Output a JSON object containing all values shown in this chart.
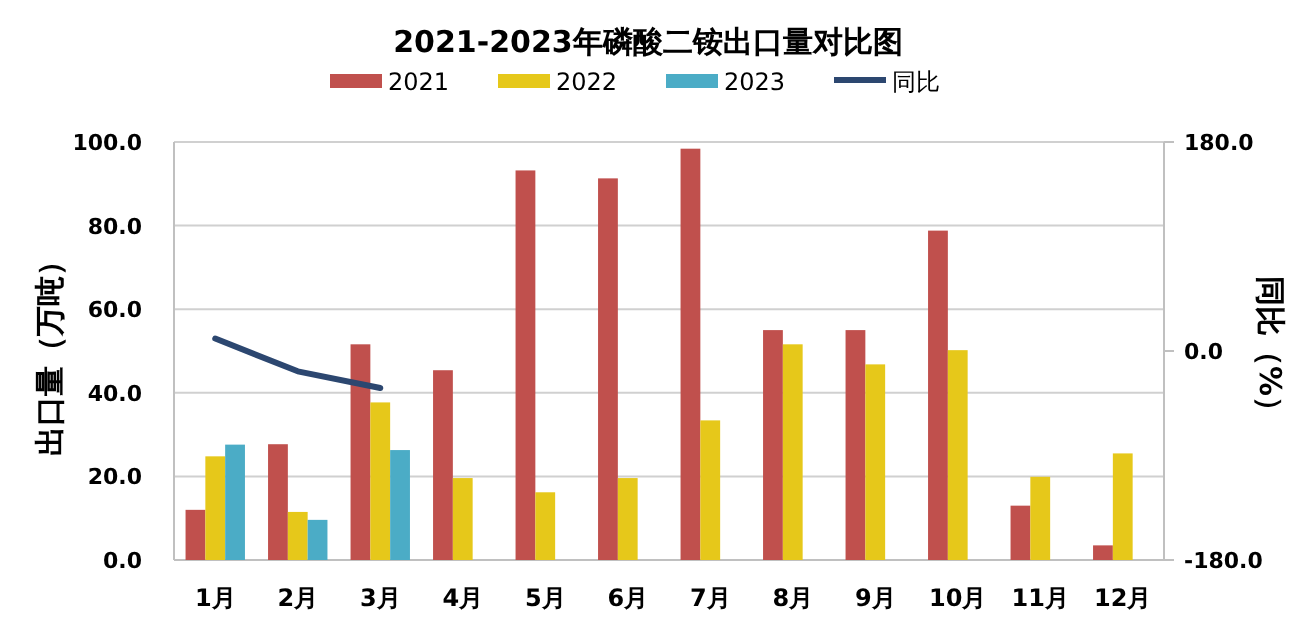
{
  "chart_data": {
    "type": "bar",
    "title": "2021-2023年磷酸二铵出口量对比图",
    "ylabel": "出口量（万吨）",
    "y2label": "同比（%）",
    "categories": [
      "1月",
      "2月",
      "3月",
      "4月",
      "5月",
      "6月",
      "7月",
      "8月",
      "9月",
      "10月",
      "11月",
      "12月"
    ],
    "series": [
      {
        "name": "2021",
        "color": "#c0504d",
        "values": [
          12.0,
          27.7,
          51.6,
          45.4,
          93.2,
          91.3,
          98.4,
          55.0,
          55.0,
          78.8,
          13.0,
          3.5
        ]
      },
      {
        "name": "2022",
        "color": "#e6c81a",
        "values": [
          24.8,
          11.5,
          37.7,
          19.6,
          16.2,
          19.6,
          33.4,
          51.6,
          46.8,
          50.2,
          19.9,
          25.5
        ]
      },
      {
        "name": "2023",
        "color": "#4bacc6",
        "values": [
          27.6,
          9.6,
          26.3,
          null,
          null,
          null,
          null,
          null,
          null,
          null,
          null,
          null
        ]
      },
      {
        "name": "同比",
        "color": "#2c4770",
        "type": "line",
        "axis": "y2",
        "values": [
          10.7,
          -17.5,
          -31.9,
          null,
          null,
          null,
          null,
          null,
          null,
          null,
          null,
          null
        ]
      }
    ],
    "ylim": [
      0,
      100
    ],
    "yticks": [
      {
        "value": 0,
        "label": "0.0"
      },
      {
        "value": 20,
        "label": "20.0"
      },
      {
        "value": 40,
        "label": "40.0"
      },
      {
        "value": 60,
        "label": "60.0"
      },
      {
        "value": 80,
        "label": "80.0"
      },
      {
        "value": 100,
        "label": "100.0"
      }
    ],
    "y2lim": [
      -180,
      180
    ],
    "y2ticks": [
      {
        "value": -180,
        "label": "-180.0"
      },
      {
        "value": 0,
        "label": "0.0"
      },
      {
        "value": 180,
        "label": "180.0"
      }
    ],
    "grid": "y",
    "legend": "top"
  }
}
